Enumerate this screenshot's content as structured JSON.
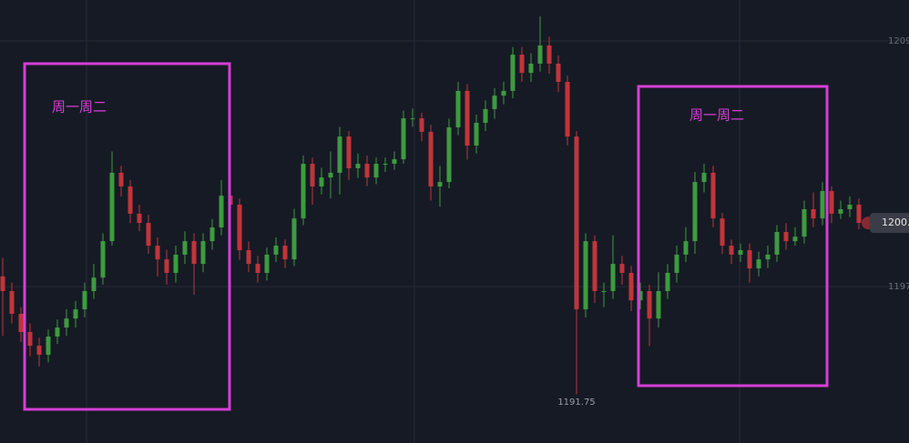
{
  "chart_data": {
    "type": "candlestick",
    "up_color": "#3d9b3f",
    "down_color": "#c0353a",
    "ylim": [
      1189.36,
      1211
    ],
    "yticks": [
      1209,
      1197
    ],
    "grid": true,
    "open": [
      1197.5,
      1196.78,
      1195.67,
      1194.78,
      1194.11,
      1193.67,
      1194.56,
      1195.0,
      1195.44,
      1195.89,
      1196.78,
      1197.44,
      1199.22,
      1202.56,
      1201.89,
      1200.56,
      1200.11,
      1199.0,
      1198.33,
      1197.67,
      1198.56,
      1199.22,
      1198.11,
      1199.22,
      1199.89,
      1201.44,
      1201.0,
      1198.78,
      1198.11,
      1197.67,
      1198.56,
      1199.0,
      1198.33,
      1200.33,
      1203.0,
      1201.89,
      1202.33,
      1202.56,
      1204.33,
      1202.78,
      1203.0,
      1202.33,
      1203.0,
      1203.0,
      1203.22,
      1205.22,
      1205.22,
      1204.56,
      1201.89,
      1202.11,
      1204.78,
      1206.56,
      1203.89,
      1205.0,
      1205.67,
      1206.33,
      1206.56,
      1208.33,
      1207.44,
      1207.89,
      1208.78,
      1207.89,
      1207.0,
      1204.33,
      1195.89,
      1199.22,
      1196.78,
      1196.78,
      1198.11,
      1197.67,
      1196.33,
      1196.78,
      1195.44,
      1196.78,
      1197.67,
      1198.56,
      1199.22,
      1202.11,
      1202.56,
      1200.33,
      1199.0,
      1198.56,
      1198.78,
      1197.89,
      1198.33,
      1198.56,
      1199.67,
      1199.22,
      1199.44,
      1200.78,
      1200.33,
      1201.67,
      1200.56,
      1200.78,
      1201.0
    ],
    "high": [
      1198.4,
      1197.2,
      1196.0,
      1195.2,
      1194.5,
      1194.9,
      1195.4,
      1195.9,
      1196.3,
      1197.2,
      1198.1,
      1199.6,
      1203.6,
      1202.9,
      1202.2,
      1201.0,
      1200.5,
      1199.4,
      1198.8,
      1199.0,
      1199.7,
      1199.6,
      1199.6,
      1200.3,
      1202.2,
      1201.8,
      1201.3,
      1199.2,
      1198.5,
      1198.9,
      1199.4,
      1199.3,
      1200.8,
      1203.4,
      1203.3,
      1202.8,
      1203.6,
      1204.8,
      1204.6,
      1203.5,
      1203.4,
      1203.3,
      1203.3,
      1203.6,
      1205.6,
      1205.7,
      1205.5,
      1204.9,
      1202.9,
      1205.2,
      1207.0,
      1206.9,
      1205.4,
      1206.1,
      1206.7,
      1207.0,
      1208.7,
      1208.7,
      1208.4,
      1210.2,
      1209.2,
      1208.3,
      1207.3,
      1204.6,
      1199.6,
      1199.5,
      1197.2,
      1199.5,
      1198.5,
      1198.0,
      1197.2,
      1197.1,
      1197.7,
      1198.1,
      1199.0,
      1199.9,
      1202.6,
      1203.0,
      1202.9,
      1200.6,
      1199.3,
      1199.1,
      1199.1,
      1198.7,
      1199.0,
      1200.0,
      1200.1,
      1199.9,
      1201.2,
      1201.6,
      1202.1,
      1201.9,
      1201.2,
      1201.4,
      1201.3
    ],
    "low": [
      1194.6,
      1195.2,
      1194.3,
      1193.6,
      1193.1,
      1193.3,
      1194.2,
      1194.6,
      1195.0,
      1195.5,
      1196.4,
      1197.1,
      1199.0,
      1201.4,
      1200.1,
      1199.7,
      1198.6,
      1197.5,
      1197.1,
      1197.2,
      1198.1,
      1196.6,
      1197.7,
      1198.8,
      1199.5,
      1200.5,
      1198.3,
      1197.7,
      1197.2,
      1197.3,
      1198.2,
      1197.9,
      1198.0,
      1200.0,
      1201.0,
      1201.5,
      1201.3,
      1201.5,
      1202.2,
      1202.3,
      1201.9,
      1202.0,
      1202.6,
      1202.7,
      1203.0,
      1204.8,
      1204.1,
      1201.2,
      1200.9,
      1201.8,
      1204.4,
      1203.2,
      1203.5,
      1204.6,
      1205.2,
      1205.9,
      1206.2,
      1207.0,
      1207.0,
      1207.5,
      1207.4,
      1206.5,
      1203.9,
      1191.75,
      1195.5,
      1196.2,
      1196.0,
      1196.4,
      1197.1,
      1195.8,
      1195.9,
      1194.1,
      1195.0,
      1196.4,
      1197.2,
      1198.2,
      1198.6,
      1201.6,
      1199.9,
      1198.6,
      1198.1,
      1198.2,
      1197.2,
      1197.5,
      1197.9,
      1198.2,
      1198.8,
      1199.0,
      1199.1,
      1199.9,
      1200.0,
      1200.1,
      1200.3,
      1200.4,
      1199.8
    ],
    "close": [
      1196.78,
      1195.67,
      1194.78,
      1194.11,
      1193.67,
      1194.56,
      1195.0,
      1195.44,
      1195.89,
      1196.78,
      1197.44,
      1199.22,
      1202.56,
      1201.89,
      1200.56,
      1200.11,
      1199.0,
      1198.33,
      1197.67,
      1198.56,
      1199.22,
      1198.11,
      1199.22,
      1199.89,
      1201.44,
      1201.0,
      1198.78,
      1198.11,
      1197.67,
      1198.56,
      1199.0,
      1198.33,
      1200.33,
      1203.0,
      1201.89,
      1202.33,
      1202.56,
      1204.33,
      1202.78,
      1203.0,
      1202.33,
      1203.0,
      1203.0,
      1203.22,
      1205.22,
      1205.22,
      1204.56,
      1201.89,
      1202.11,
      1204.78,
      1206.56,
      1203.89,
      1205.0,
      1205.67,
      1206.33,
      1206.56,
      1208.33,
      1207.44,
      1207.89,
      1208.78,
      1207.89,
      1207.0,
      1204.33,
      1195.89,
      1199.22,
      1196.78,
      1196.78,
      1198.11,
      1197.67,
      1196.33,
      1196.78,
      1195.44,
      1196.78,
      1197.67,
      1198.56,
      1199.22,
      1202.11,
      1202.56,
      1200.33,
      1199.0,
      1198.56,
      1198.78,
      1197.89,
      1198.33,
      1198.56,
      1199.67,
      1199.22,
      1199.44,
      1200.78,
      1200.33,
      1201.67,
      1200.56,
      1200.78,
      1201.0,
      1200.11
    ],
    "annotations": [
      {
        "text": "周一周二"
      },
      {
        "text": "周一周二"
      }
    ]
  }
}
